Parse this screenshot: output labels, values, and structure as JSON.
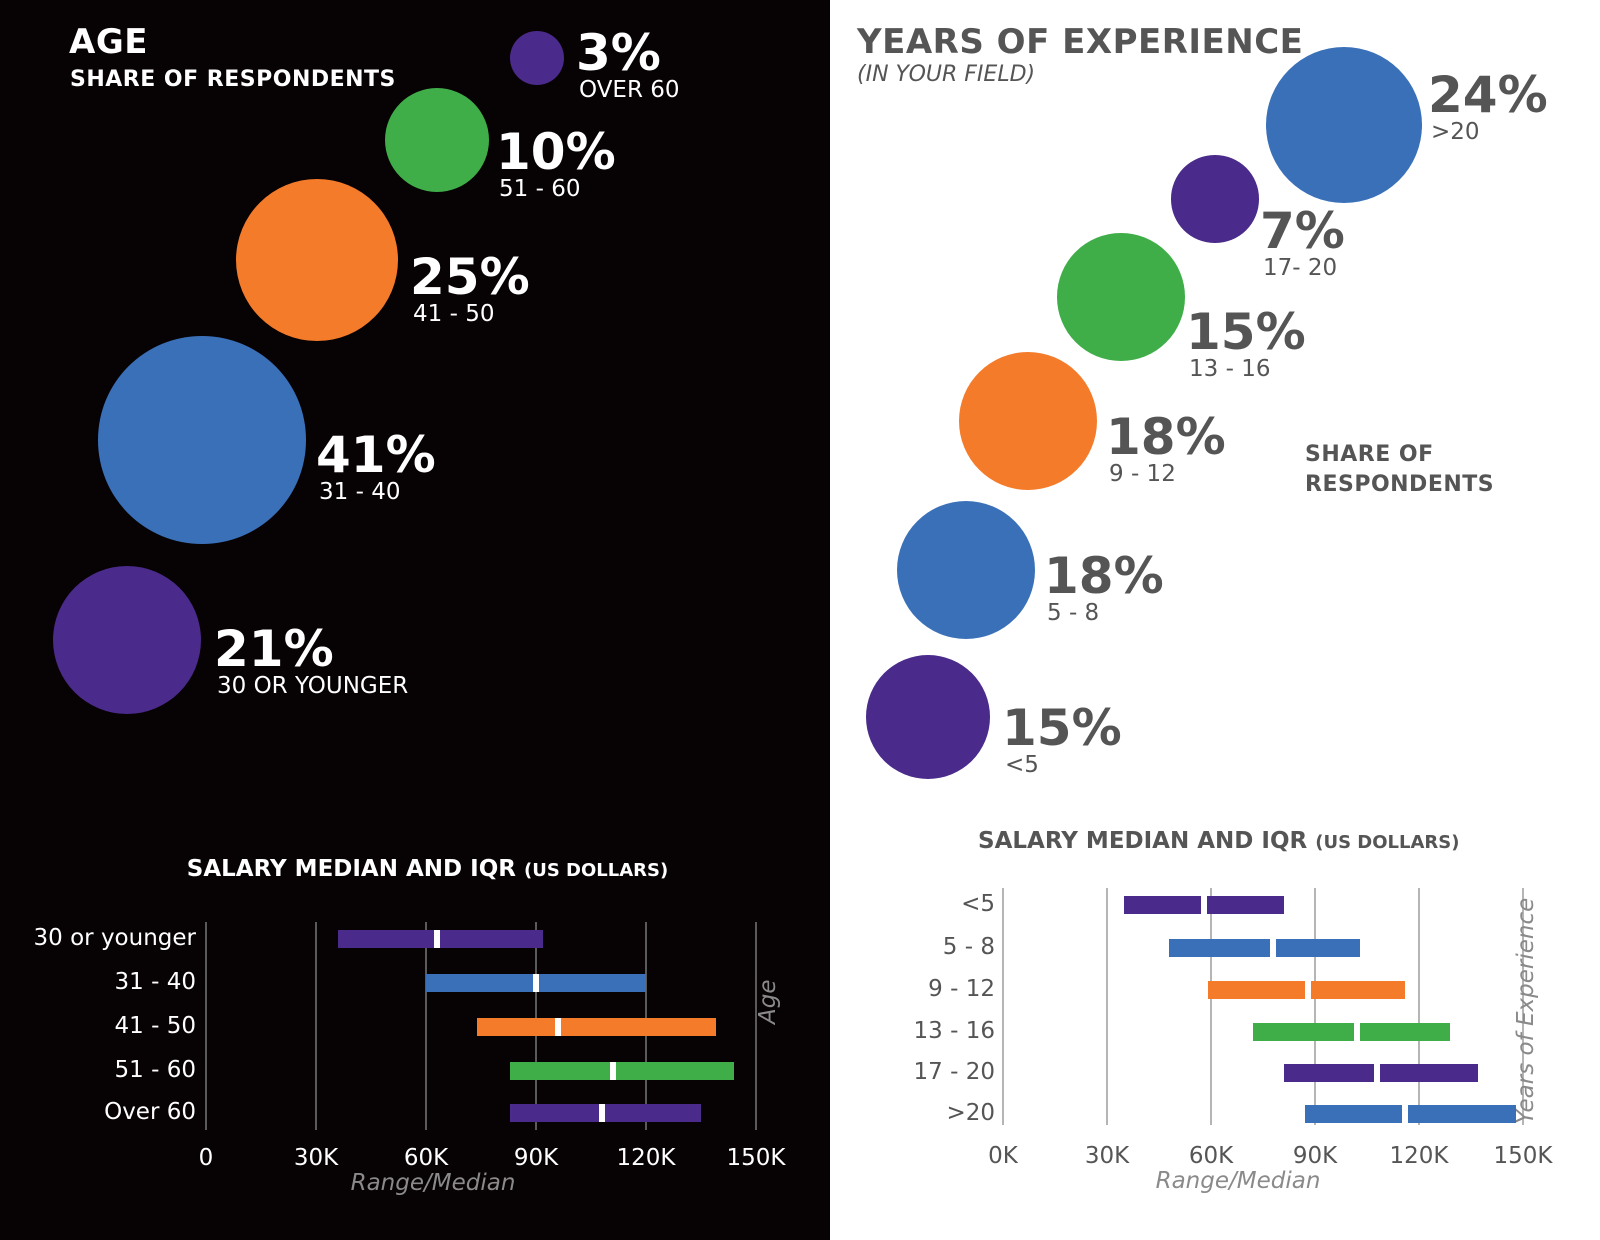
{
  "chart_data": [
    {
      "type": "bubble",
      "title": "AGE",
      "subtitle": "SHARE OF RESPONDENTS",
      "unit": "%",
      "items": [
        {
          "label": "OVER 60",
          "value": 3,
          "color": "#4a2a8a"
        },
        {
          "label": "51 - 60",
          "value": 10,
          "color": "#3fae49"
        },
        {
          "label": "41 - 50",
          "value": 25,
          "color": "#f47b2a"
        },
        {
          "label": "31 - 40",
          "value": 41,
          "color": "#3a70b8"
        },
        {
          "label": "30 OR YOUNGER",
          "value": 21,
          "color": "#4a2a8a"
        }
      ]
    },
    {
      "type": "bubble",
      "title": "YEARS OF EXPERIENCE",
      "subtitle": "(IN YOUR FIELD)",
      "side_label": "SHARE OF RESPONDENTS",
      "unit": "%",
      "items": [
        {
          "label": ">20",
          "value": 24,
          "color": "#3a70b8"
        },
        {
          "label": "17- 20",
          "value": 7,
          "color": "#4a2a8a"
        },
        {
          "label": "13 - 16",
          "value": 15,
          "color": "#3fae49"
        },
        {
          "label": "9 - 12",
          "value": 18,
          "color": "#f47b2a"
        },
        {
          "label": "5 - 8",
          "value": 18,
          "color": "#3a70b8"
        },
        {
          "label": "<5",
          "value": 15,
          "color": "#4a2a8a"
        }
      ]
    },
    {
      "type": "range-bar",
      "title": "SALARY MEDIAN AND IQR",
      "title_unit": "(US DOLLARS)",
      "xlabel": "Range/Median",
      "ylabel": "Age",
      "xlim": [
        0,
        150000
      ],
      "xticks": [
        "0",
        "30K",
        "60K",
        "90K",
        "120K",
        "150K"
      ],
      "xtick_values": [
        0,
        30000,
        60000,
        90000,
        120000,
        150000
      ],
      "categories": [
        "30 or younger",
        "31 - 40",
        "41 - 50",
        "51 - 60",
        "Over 60"
      ],
      "rows": [
        {
          "low": 36000,
          "median": 63000,
          "high": 92000,
          "color": "#4a2a8a"
        },
        {
          "low": 60000,
          "median": 90000,
          "high": 120000,
          "color": "#3a70b8"
        },
        {
          "low": 74000,
          "median": 96000,
          "high": 139000,
          "color": "#f47b2a"
        },
        {
          "low": 83000,
          "median": 111000,
          "high": 144000,
          "color": "#3fae49"
        },
        {
          "low": 83000,
          "median": 108000,
          "high": 135000,
          "color": "#4a2a8a"
        }
      ]
    },
    {
      "type": "range-bar",
      "title": "SALARY MEDIAN AND IQR",
      "title_unit": "(US DOLLARS)",
      "xlabel": "Range/Median",
      "ylabel": "Years of Experience",
      "xlim": [
        0,
        150000
      ],
      "xticks": [
        "0K",
        "30K",
        "60K",
        "90K",
        "120K",
        "150K"
      ],
      "xtick_values": [
        0,
        30000,
        60000,
        90000,
        120000,
        150000
      ],
      "categories": [
        "<5",
        "5 - 8",
        "9 - 12",
        "13 - 16",
        "17 - 20",
        ">20"
      ],
      "rows": [
        {
          "low": 35000,
          "median": 58000,
          "high": 81000,
          "color": "#4a2a8a"
        },
        {
          "low": 48000,
          "median": 78000,
          "high": 103000,
          "color": "#3a70b8"
        },
        {
          "low": 59000,
          "median": 88000,
          "high": 116000,
          "color": "#f47b2a"
        },
        {
          "low": 72000,
          "median": 102000,
          "high": 129000,
          "color": "#3fae49"
        },
        {
          "low": 81000,
          "median": 108000,
          "high": 137000,
          "color": "#4a2a8a"
        },
        {
          "low": 87000,
          "median": 116000,
          "high": 148000,
          "color": "#3a70b8"
        }
      ]
    }
  ],
  "colors": {
    "left_bg": "#070204",
    "left_text": "#ffffff",
    "right_bg": "#ffffff",
    "right_text": "#555555",
    "caption": "#8a8a8a"
  }
}
